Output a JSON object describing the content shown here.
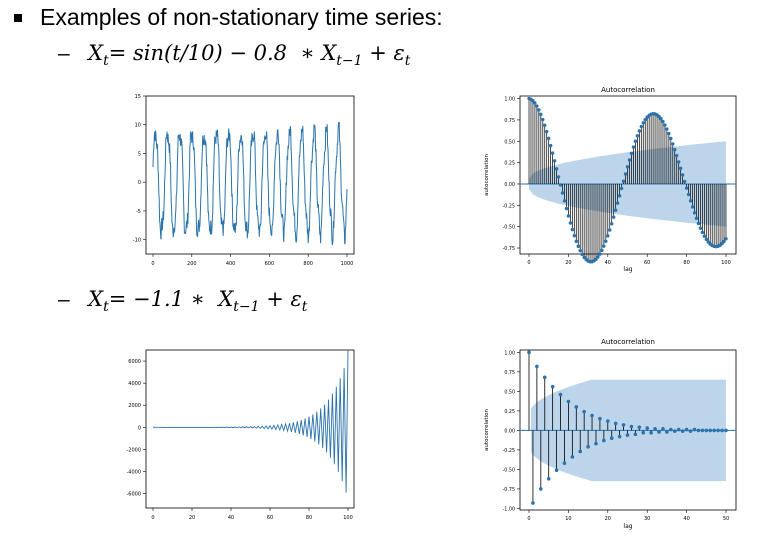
{
  "heading": "Examples of non-stationary time series:",
  "formula1": "X_t = sin(t/10) − 0.8 ∗ X_{t−1} + ε_t",
  "formula2": "X_t = −1.1 ∗ X_{t−1} + ε_t",
  "colors": {
    "line": "#2a73ad",
    "band": "#bcd5ea",
    "stem": "#000000",
    "marker": "#2a73ad"
  },
  "chart_data": [
    {
      "type": "line",
      "title": "",
      "xlim": [
        0,
        1000
      ],
      "ylim": [
        -12,
        15
      ],
      "x_ticks": [
        "0",
        "200",
        "400",
        "600",
        "800",
        "1000"
      ],
      "y_ticks": [
        "15",
        "10",
        "5",
        "0",
        "-5",
        "-10"
      ],
      "series": [
        {
          "description": "sin(t/10) oscillation with AR noise, amplitude approx 10, about 16 cycles",
          "period": 62.8,
          "amplitude": 10
        }
      ]
    },
    {
      "type": "bar",
      "title": "Autocorrelation",
      "xlabel": "lag",
      "ylabel": "autocorrelation",
      "xlim": [
        0,
        100
      ],
      "ylim": [
        -0.8,
        1.0
      ],
      "x_ticks": [
        "0",
        "20",
        "40",
        "60",
        "80",
        "100"
      ],
      "y_ticks": [
        "1.00",
        "0.75",
        "0.50",
        "0.25",
        "0.00",
        "-0.25",
        "-0.50",
        "-0.75"
      ],
      "acf_shape": "damped cosine: 1.0 at lag 0, minimum -0.78 near lag 32, maximum 0.72 near lag 63, -0.70 near lag 97",
      "confidence_band": "widening, approx ±0.05 at lag 0 to ±0.5 at lag 100"
    },
    {
      "type": "line",
      "title": "",
      "xlim": [
        0,
        100
      ],
      "ylim": [
        -7000,
        6500
      ],
      "x_ticks": [
        "0",
        "20",
        "40",
        "60",
        "80",
        "100"
      ],
      "y_ticks": [
        "6000",
        "4000",
        "2000",
        "0",
        "-2000",
        "-4000",
        "-6000"
      ],
      "series": [
        {
          "description": "alternating sign, exponentially growing oscillation; near 0 until t≈55, reaching about 6500 / -7000 at t=100"
        }
      ]
    },
    {
      "type": "bar",
      "title": "Autocorrelation",
      "xlabel": "lag",
      "ylabel": "autocorrelation",
      "xlim": [
        0,
        50
      ],
      "ylim": [
        -1.0,
        1.0
      ],
      "x_ticks": [
        "0",
        "10",
        "20",
        "30",
        "40",
        "50"
      ],
      "y_ticks": [
        "1.00",
        "0.75",
        "0.50",
        "0.25",
        "0.00",
        "-0.25",
        "-0.50",
        "-0.75",
        "-1.00"
      ],
      "lags": [
        0,
        1,
        2,
        3,
        4,
        5,
        6,
        7,
        8,
        9,
        10,
        11,
        12,
        13,
        14,
        15,
        16,
        17,
        18,
        19,
        20,
        21,
        22,
        23,
        24,
        25,
        26,
        27,
        28,
        29,
        30,
        31,
        32,
        33,
        34,
        35,
        36,
        37,
        38,
        39,
        40,
        41,
        42,
        43,
        44,
        45,
        46,
        47,
        48,
        49,
        50
      ],
      "values": [
        1.0,
        -0.93,
        0.82,
        -0.75,
        0.68,
        -0.62,
        0.56,
        -0.51,
        0.46,
        -0.42,
        0.37,
        -0.34,
        0.3,
        -0.27,
        0.24,
        -0.21,
        0.19,
        -0.17,
        0.15,
        -0.13,
        0.12,
        -0.1,
        0.09,
        -0.08,
        0.07,
        -0.06,
        0.05,
        -0.05,
        0.04,
        -0.03,
        0.03,
        -0.03,
        0.02,
        -0.02,
        0.02,
        -0.02,
        0.01,
        -0.01,
        0.01,
        -0.01,
        0.01,
        -0.01,
        0.01,
        0.0,
        0.0,
        0.0,
        0.0,
        0.0,
        0.0,
        0.0,
        0.0
      ],
      "confidence_band": "approx ±0.25 near lag 1, widening to ±0.65 by lag 15 then flat"
    }
  ]
}
